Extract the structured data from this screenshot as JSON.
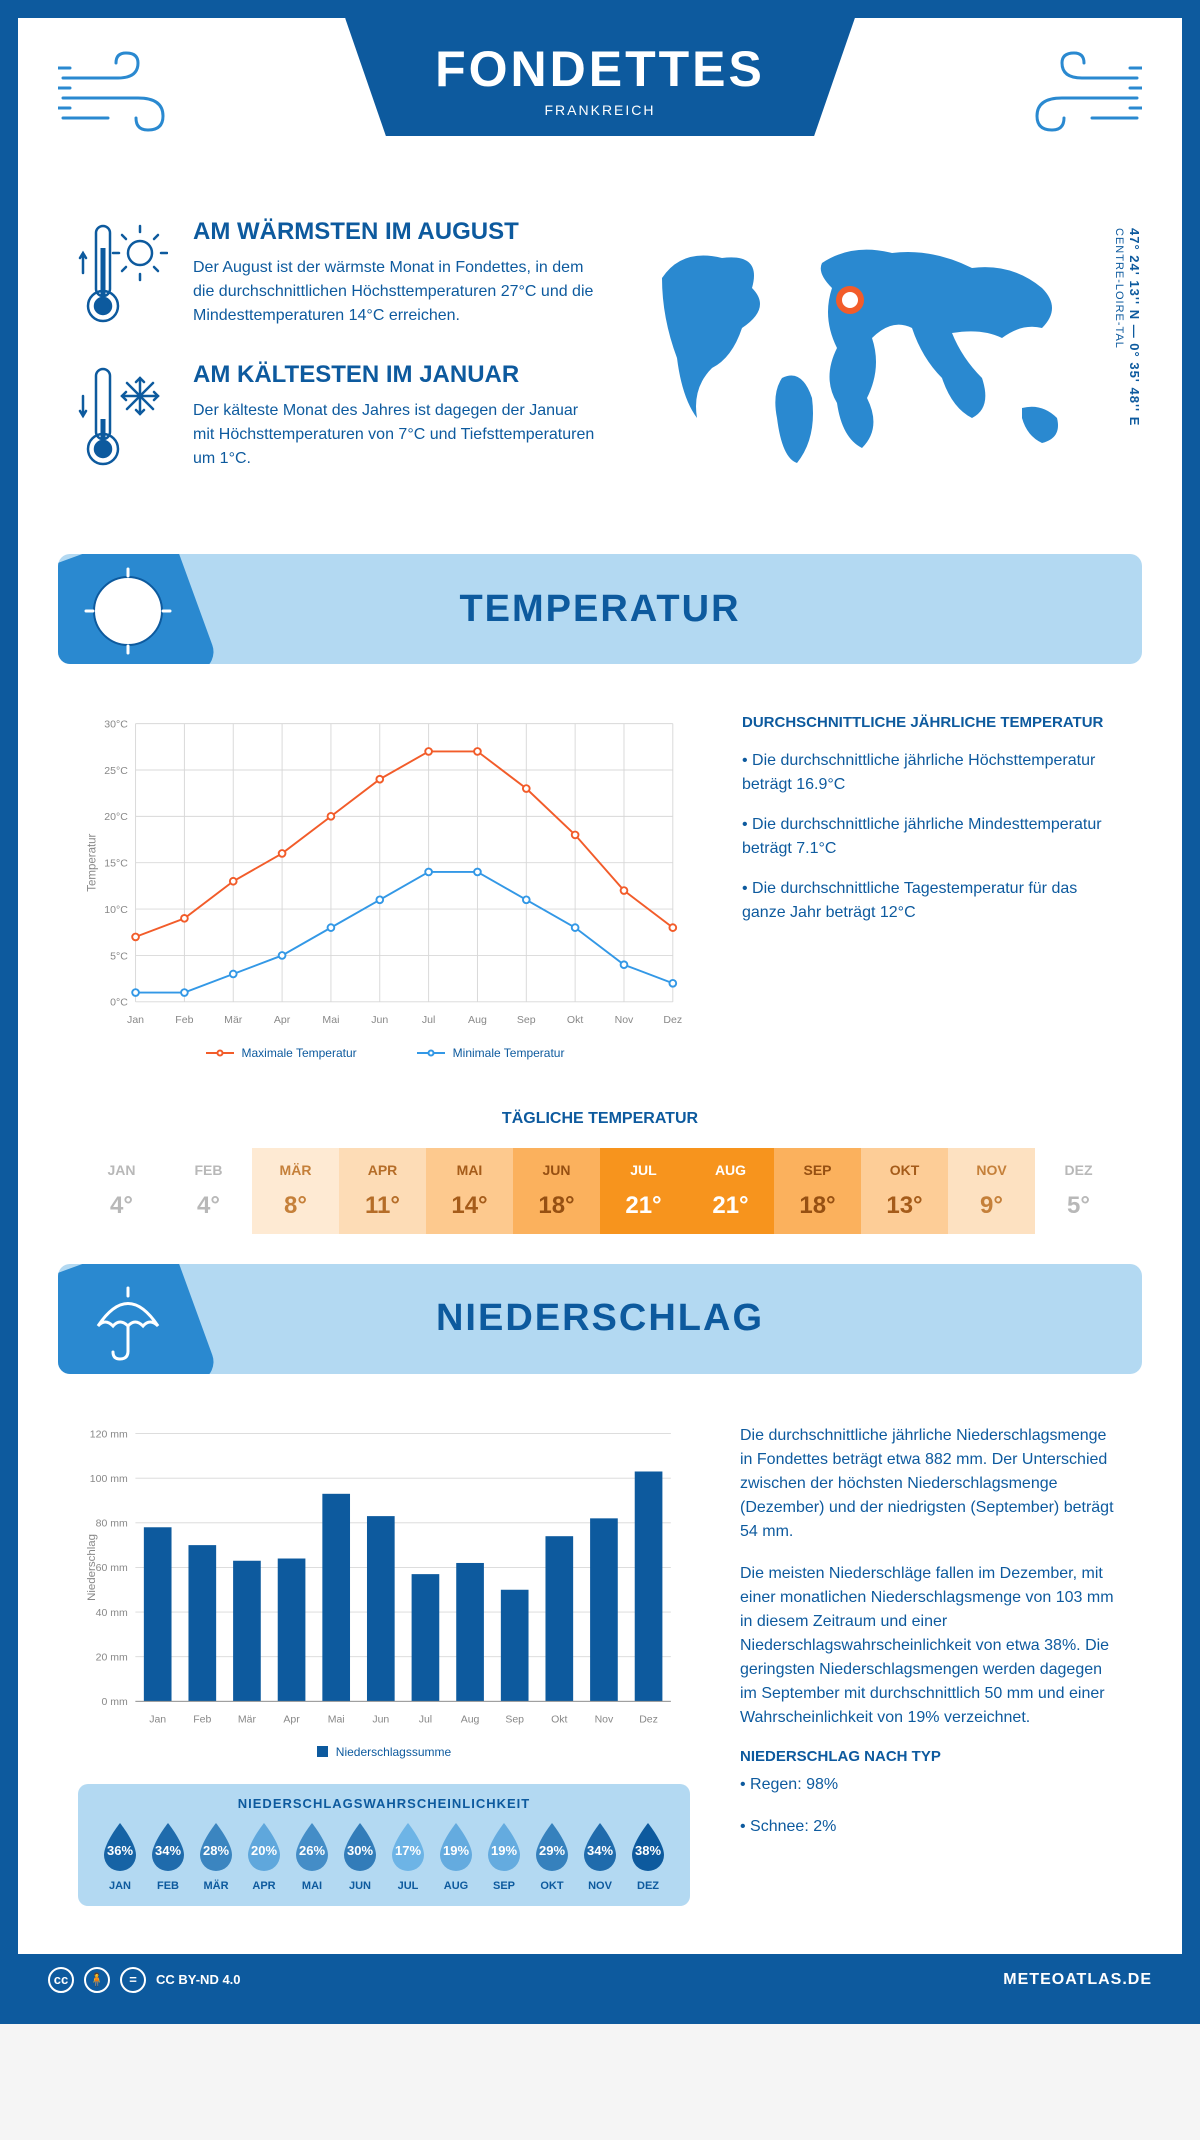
{
  "colors": {
    "primary": "#0d5a9e",
    "accent_light": "#b3d9f2",
    "accent_mid": "#2a89d0",
    "line_max": "#f25c2a",
    "line_min": "#3398e6",
    "bar": "#0d5a9e",
    "grid": "#d8d8d8",
    "text_muted": "#888888"
  },
  "header": {
    "title": "FONDETTES",
    "subtitle": "FRANKREICH"
  },
  "coords": {
    "lat_lon": "47° 24' 13'' N — 0° 35' 48'' E",
    "region": "CENTRE-LOIRE-TAL"
  },
  "facts": {
    "warm": {
      "title": "AM WÄRMSTEN IM AUGUST",
      "text": "Der August ist der wärmste Monat in Fondettes, in dem die durchschnittlichen Höchsttemperaturen 27°C und die Mindesttemperaturen 14°C erreichen."
    },
    "cold": {
      "title": "AM KÄLTESTEN IM JANUAR",
      "text": "Der kälteste Monat des Jahres ist dagegen der Januar mit Höchsttemperaturen von 7°C und Tiefsttemperaturen um 1°C."
    }
  },
  "sections": {
    "temp_title": "TEMPERATUR",
    "precip_title": "NIEDERSCHLAG"
  },
  "months": [
    "Jan",
    "Feb",
    "Mär",
    "Apr",
    "Mai",
    "Jun",
    "Jul",
    "Aug",
    "Sep",
    "Okt",
    "Nov",
    "Dez"
  ],
  "months_upper": [
    "JAN",
    "FEB",
    "MÄR",
    "APR",
    "MAI",
    "JUN",
    "JUL",
    "AUG",
    "SEP",
    "OKT",
    "NOV",
    "DEZ"
  ],
  "temp_chart": {
    "y_title": "Temperatur",
    "ylim": [
      0,
      30
    ],
    "ytick_step": 5,
    "ytick_suffix": "°C",
    "max_series": [
      7,
      9,
      13,
      16,
      20,
      24,
      27,
      27,
      23,
      18,
      12,
      8
    ],
    "min_series": [
      1,
      1,
      3,
      5,
      8,
      11,
      14,
      14,
      11,
      8,
      4,
      2
    ],
    "legend_max": "Maximale Temperatur",
    "legend_min": "Minimale Temperatur",
    "line_width": 2,
    "marker_radius": 3.5
  },
  "temp_text": {
    "heading": "DURCHSCHNITTLICHE JÄHRLICHE TEMPERATUR",
    "b1": "• Die durchschnittliche jährliche Höchsttemperatur beträgt 16.9°C",
    "b2": "• Die durchschnittliche jährliche Mindesttemperatur beträgt 7.1°C",
    "b3": "• Die durchschnittliche Tagestemperatur für das ganze Jahr beträgt 12°C"
  },
  "daily_temp": {
    "title": "TÄGLICHE TEMPERATUR",
    "values": [
      4,
      4,
      8,
      11,
      14,
      18,
      21,
      21,
      18,
      13,
      9,
      5
    ],
    "suffix": "°",
    "cell_colors": [
      "#ffffff",
      "#ffffff",
      "#feead3",
      "#fddcb6",
      "#fdc98e",
      "#fbb15d",
      "#f7941d",
      "#f7941d",
      "#fbb15d",
      "#fdcd97",
      "#fde1c1",
      "#ffffff"
    ],
    "text_colors": [
      "#b8b8b8",
      "#b8b8b8",
      "#c5803a",
      "#b56d28",
      "#a55c1a",
      "#965012",
      "#ffffff",
      "#ffffff",
      "#965012",
      "#a55c1a",
      "#c5803a",
      "#b8b8b8"
    ]
  },
  "precip_chart": {
    "y_title": "Niederschlag",
    "ylim": [
      0,
      120
    ],
    "ytick_step": 20,
    "ytick_suffix": " mm",
    "values": [
      78,
      70,
      63,
      64,
      93,
      83,
      57,
      62,
      50,
      74,
      82,
      103
    ],
    "legend": "Niederschlagssumme",
    "bar_width_ratio": 0.62
  },
  "precip_text": {
    "p1": "Die durchschnittliche jährliche Niederschlagsmenge in Fondettes beträgt etwa 882 mm. Der Unterschied zwischen der höchsten Niederschlagsmenge (Dezember) und der niedrigsten (September) beträgt 54 mm.",
    "p2": "Die meisten Niederschläge fallen im Dezember, mit einer monatlichen Niederschlagsmenge von 103 mm in diesem Zeitraum und einer Niederschlagswahrscheinlichkeit von etwa 38%. Die geringsten Niederschlagsmengen werden dagegen im September mit durchschnittlich 50 mm und einer Wahrscheinlichkeit von 19% verzeichnet.",
    "type_heading": "NIEDERSCHLAG NACH TYP",
    "type1": "• Regen: 98%",
    "type2": "• Schnee: 2%"
  },
  "prob": {
    "title": "NIEDERSCHLAGSWAHRSCHEINLICHKEIT",
    "values": [
      36,
      34,
      28,
      20,
      26,
      30,
      17,
      19,
      19,
      29,
      34,
      38
    ],
    "scale": {
      "min": 17,
      "max": 38
    },
    "color_light": "#6db4e6",
    "color_dark": "#0d5a9e"
  },
  "footer": {
    "license": "CC BY-ND 4.0",
    "site": "METEOATLAS.DE"
  }
}
